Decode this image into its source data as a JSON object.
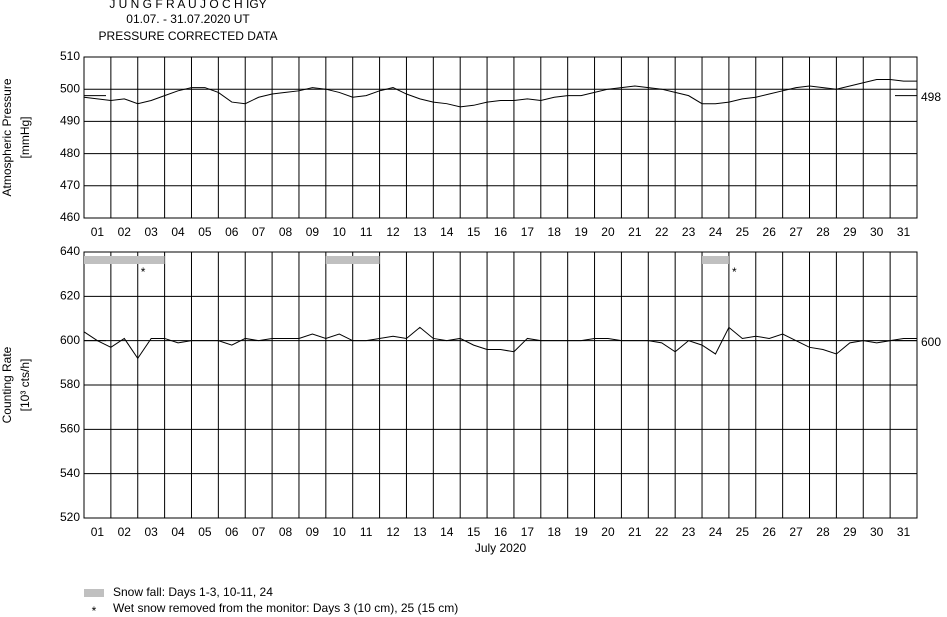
{
  "header": {
    "title": "J U N G F R A U J O C H  IGY",
    "period": "01.07. - 31.07.2020  UT",
    "subtitle": "PRESSURE CORRECTED DATA"
  },
  "chart_data": [
    {
      "type": "line",
      "ylabel": [
        "Atmospheric Pressure",
        "[mmHg]"
      ],
      "x": [
        1,
        1.5,
        2,
        2.5,
        3,
        3.5,
        4,
        4.5,
        5,
        5.5,
        6,
        6.5,
        7,
        7.5,
        8,
        8.5,
        9,
        9.5,
        10,
        10.5,
        11,
        11.5,
        12,
        12.5,
        13,
        13.5,
        14,
        14.5,
        15,
        15.5,
        16,
        16.5,
        17,
        17.5,
        18,
        18.5,
        19,
        19.5,
        20,
        20.5,
        21,
        21.5,
        22,
        22.5,
        23,
        23.5,
        24,
        24.5,
        25,
        25.5,
        26,
        26.5,
        27,
        27.5,
        28,
        28.5,
        29,
        29.5,
        30,
        30.5,
        31,
        31.5,
        32
      ],
      "series": [
        {
          "color": "#000000",
          "values": [
            497.5,
            497,
            496.5,
            497,
            495.5,
            496.5,
            498,
            499.5,
            500.5,
            500.5,
            499,
            496,
            495.5,
            497.5,
            498.5,
            499,
            499.5,
            500.5,
            500,
            499,
            497.5,
            498,
            499.5,
            500.5,
            498.5,
            497,
            496,
            495.5,
            494.5,
            495,
            496,
            496.5,
            496.5,
            497,
            496.5,
            497.5,
            498,
            498,
            499,
            500,
            500.5,
            501,
            500.5,
            500,
            499,
            498,
            495.5,
            495.5,
            496,
            497,
            497.5,
            498.5,
            499.5,
            500.5,
            501,
            500.5,
            500,
            501,
            502,
            503,
            503,
            502.5,
            502.5
          ]
        }
      ],
      "reference": 498,
      "xlim": [
        1,
        32
      ],
      "ylim": [
        460,
        510
      ],
      "yticks": [
        460,
        470,
        480,
        490,
        500,
        510
      ],
      "xticks": [
        {
          "value": 1,
          "label": "01"
        },
        {
          "value": 2,
          "label": "02"
        },
        {
          "value": 3,
          "label": "03"
        },
        {
          "value": 4,
          "label": "04"
        },
        {
          "value": 5,
          "label": "05"
        },
        {
          "value": 6,
          "label": "06"
        },
        {
          "value": 7,
          "label": "07"
        },
        {
          "value": 8,
          "label": "08"
        },
        {
          "value": 9,
          "label": "09"
        },
        {
          "value": 10,
          "label": "10"
        },
        {
          "value": 11,
          "label": "11"
        },
        {
          "value": 12,
          "label": "12"
        },
        {
          "value": 13,
          "label": "13"
        },
        {
          "value": 14,
          "label": "14"
        },
        {
          "value": 15,
          "label": "15"
        },
        {
          "value": 16,
          "label": "16"
        },
        {
          "value": 17,
          "label": "17"
        },
        {
          "value": 18,
          "label": "18"
        },
        {
          "value": 19,
          "label": "19"
        },
        {
          "value": 20,
          "label": "20"
        },
        {
          "value": 21,
          "label": "21"
        },
        {
          "value": 22,
          "label": "22"
        },
        {
          "value": 23,
          "label": "23"
        },
        {
          "value": 24,
          "label": "24"
        },
        {
          "value": 25,
          "label": "25"
        },
        {
          "value": 26,
          "label": "26"
        },
        {
          "value": 27,
          "label": "27"
        },
        {
          "value": 28,
          "label": "28"
        },
        {
          "value": 29,
          "label": "29"
        },
        {
          "value": 30,
          "label": "30"
        },
        {
          "value": 31,
          "label": "31"
        }
      ],
      "grid": true
    },
    {
      "type": "line",
      "ylabel": [
        "Counting Rate",
        "[10³ cts/h]"
      ],
      "xlabel": "July 2020",
      "x": [
        1,
        1.5,
        2,
        2.5,
        3,
        3.5,
        4,
        4.5,
        5,
        5.5,
        6,
        6.5,
        7,
        7.5,
        8,
        8.5,
        9,
        9.5,
        10,
        10.5,
        11,
        11.5,
        12,
        12.5,
        13,
        13.5,
        14,
        14.5,
        15,
        15.5,
        16,
        16.5,
        17,
        17.5,
        18,
        18.5,
        19,
        19.5,
        20,
        20.5,
        21,
        21.5,
        22,
        22.5,
        23,
        23.5,
        24,
        24.5,
        25,
        25.5,
        26,
        26.5,
        27,
        27.5,
        28,
        28.5,
        29,
        29.5,
        30,
        30.5,
        31,
        31.5,
        32
      ],
      "series": [
        {
          "color": "#000000",
          "values": [
            604,
            600,
            597,
            601,
            592,
            601,
            601,
            599,
            600,
            600,
            600,
            598,
            601,
            600,
            601,
            601,
            601,
            603,
            601,
            603,
            600,
            600,
            601,
            602,
            601,
            606,
            601,
            600,
            601,
            598,
            596,
            596,
            595,
            601,
            600,
            600,
            600,
            600,
            601,
            601,
            600,
            600,
            600,
            599,
            595,
            600,
            598,
            594,
            606,
            601,
            602,
            601,
            603,
            600,
            597,
            596,
            594,
            599,
            600,
            599,
            600,
            601,
            601
          ]
        }
      ],
      "reference": 600,
      "snow_fall": [
        [
          1,
          4
        ],
        [
          10,
          12
        ],
        [
          24,
          25
        ]
      ],
      "snow_color": "#c0c0c0",
      "wet_snow_removed": [
        3,
        25
      ],
      "marker": "*",
      "xlim": [
        1,
        32
      ],
      "ylim": [
        520,
        640
      ],
      "yticks": [
        520,
        540,
        560,
        580,
        600,
        620,
        640
      ],
      "xticks": [
        {
          "value": 1,
          "label": "01"
        },
        {
          "value": 2,
          "label": "02"
        },
        {
          "value": 3,
          "label": "03"
        },
        {
          "value": 4,
          "label": "04"
        },
        {
          "value": 5,
          "label": "05"
        },
        {
          "value": 6,
          "label": "06"
        },
        {
          "value": 7,
          "label": "07"
        },
        {
          "value": 8,
          "label": "08"
        },
        {
          "value": 9,
          "label": "09"
        },
        {
          "value": 10,
          "label": "10"
        },
        {
          "value": 11,
          "label": "11"
        },
        {
          "value": 12,
          "label": "12"
        },
        {
          "value": 13,
          "label": "13"
        },
        {
          "value": 14,
          "label": "14"
        },
        {
          "value": 15,
          "label": "15"
        },
        {
          "value": 16,
          "label": "16"
        },
        {
          "value": 17,
          "label": "17"
        },
        {
          "value": 18,
          "label": "18"
        },
        {
          "value": 19,
          "label": "19"
        },
        {
          "value": 20,
          "label": "20"
        },
        {
          "value": 21,
          "label": "21"
        },
        {
          "value": 22,
          "label": "22"
        },
        {
          "value": 23,
          "label": "23"
        },
        {
          "value": 24,
          "label": "24"
        },
        {
          "value": 25,
          "label": "25"
        },
        {
          "value": 26,
          "label": "26"
        },
        {
          "value": 27,
          "label": "27"
        },
        {
          "value": 28,
          "label": "28"
        },
        {
          "value": 29,
          "label": "29"
        },
        {
          "value": 30,
          "label": "30"
        },
        {
          "value": 31,
          "label": "31"
        }
      ],
      "grid": true
    }
  ],
  "legend": [
    "Snow fall: Days 1-3, 10-11, 24",
    "Wet snow removed from the monitor: Days 3 (10 cm), 25 (15 cm)"
  ]
}
